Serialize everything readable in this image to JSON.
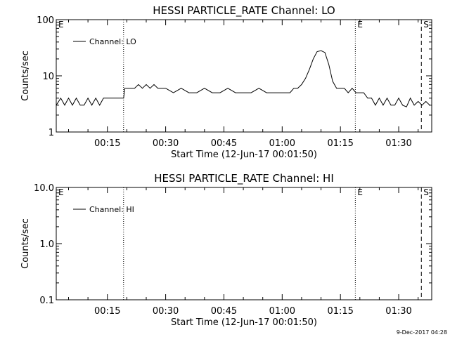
{
  "chart_data": [
    {
      "type": "line",
      "title": "HESSI PARTICLE_RATE Channel: LO",
      "xlabel": "Start Time (12-Jun-17 00:01:50)",
      "ylabel": "Counts/sec",
      "yscale": "log",
      "ylim": [
        1,
        100
      ],
      "xlim": [
        "00:01:50",
        "01:38:30"
      ],
      "xticks": [
        "00:15",
        "00:30",
        "00:45",
        "01:00",
        "01:15",
        "01:30"
      ],
      "yticks": [
        "1",
        "10",
        "100"
      ],
      "legend": {
        "entries": [
          "Channel: LO"
        ],
        "placement": "top-left"
      },
      "markers": [
        {
          "label": "E",
          "time": "00:01:50",
          "style": "none"
        },
        {
          "label": "",
          "time": "00:19:10",
          "style": "dotted"
        },
        {
          "label": "E",
          "time": "01:18:50",
          "style": "dotted"
        },
        {
          "label": "S",
          "time": "01:35:50",
          "style": "dashed"
        },
        {
          "label": "",
          "time": "01:38:30",
          "style": "dash-dot"
        }
      ],
      "series": [
        {
          "name": "Channel: LO",
          "x": [
            "00:01:50",
            "00:03:00",
            "00:04:00",
            "00:05:00",
            "00:06:00",
            "00:07:00",
            "00:08:00",
            "00:09:00",
            "00:10:00",
            "00:11:00",
            "00:12:00",
            "00:13:00",
            "00:14:00",
            "00:15:00",
            "00:16:00",
            "00:17:00",
            "00:18:00",
            "00:19:10",
            "00:19:30",
            "00:21:00",
            "00:22:00",
            "00:23:00",
            "00:24:00",
            "00:25:00",
            "00:26:00",
            "00:27:00",
            "00:28:00",
            "00:30:00",
            "00:32:00",
            "00:34:00",
            "00:36:00",
            "00:38:00",
            "00:40:00",
            "00:42:00",
            "00:44:00",
            "00:46:00",
            "00:48:00",
            "00:50:00",
            "00:52:00",
            "00:54:00",
            "00:56:00",
            "00:58:00",
            "01:00:00",
            "01:02:00",
            "01:03:00",
            "01:04:00",
            "01:05:00",
            "01:06:00",
            "01:07:00",
            "01:08:00",
            "01:09:00",
            "01:10:00",
            "01:11:00",
            "01:12:00",
            "01:13:00",
            "01:14:00",
            "01:15:00",
            "01:16:00",
            "01:17:00",
            "01:18:00",
            "01:19:00",
            "01:20:00",
            "01:21:00",
            "01:22:00",
            "01:23:00",
            "01:24:00",
            "01:25:00",
            "01:26:00",
            "01:27:00",
            "01:28:00",
            "01:29:00",
            "01:30:00",
            "01:31:00",
            "01:32:00",
            "01:33:00",
            "01:34:00",
            "01:35:00",
            "01:36:00",
            "01:37:00",
            "01:38:00"
          ],
          "values": [
            3,
            4,
            3,
            4,
            3,
            4,
            3,
            3,
            4,
            3,
            4,
            3,
            4,
            4,
            4,
            4,
            4,
            4,
            6,
            6,
            6,
            7,
            6,
            7,
            6,
            7,
            6,
            6,
            5,
            6,
            5,
            5,
            6,
            5,
            5,
            6,
            5,
            5,
            5,
            6,
            5,
            5,
            5,
            5,
            6,
            6,
            7,
            9,
            13,
            20,
            27,
            28,
            26,
            16,
            8,
            6,
            6,
            6,
            5,
            6,
            5,
            5,
            5,
            4,
            4,
            3,
            4,
            3,
            4,
            3,
            3,
            4,
            3,
            2.8,
            4,
            3,
            3.5,
            3,
            3.5,
            3
          ]
        }
      ]
    },
    {
      "type": "line",
      "title": "HESSI PARTICLE_RATE Channel: HI",
      "xlabel": "Start Time (12-Jun-17 00:01:50)",
      "ylabel": "Counts/sec",
      "yscale": "log",
      "ylim": [
        0.1,
        10.0
      ],
      "xlim": [
        "00:01:50",
        "01:38:30"
      ],
      "xticks": [
        "00:15",
        "00:30",
        "00:45",
        "01:00",
        "01:15",
        "01:30"
      ],
      "yticks": [
        "0.1",
        "1.0",
        "10.0"
      ],
      "legend": {
        "entries": [
          "Channel: HI"
        ],
        "placement": "top-left"
      },
      "markers": [
        {
          "label": "E",
          "time": "00:01:50",
          "style": "none"
        },
        {
          "label": "",
          "time": "00:19:10",
          "style": "dotted"
        },
        {
          "label": "E",
          "time": "01:18:50",
          "style": "dotted"
        },
        {
          "label": "S",
          "time": "01:35:50",
          "style": "dashed"
        },
        {
          "label": "",
          "time": "01:38:30",
          "style": "dash-dot"
        }
      ],
      "series": [
        {
          "name": "Channel: HI",
          "x": [],
          "values": []
        }
      ]
    }
  ],
  "footer": {
    "timestamp": "9-Dec-2017 04:28"
  }
}
